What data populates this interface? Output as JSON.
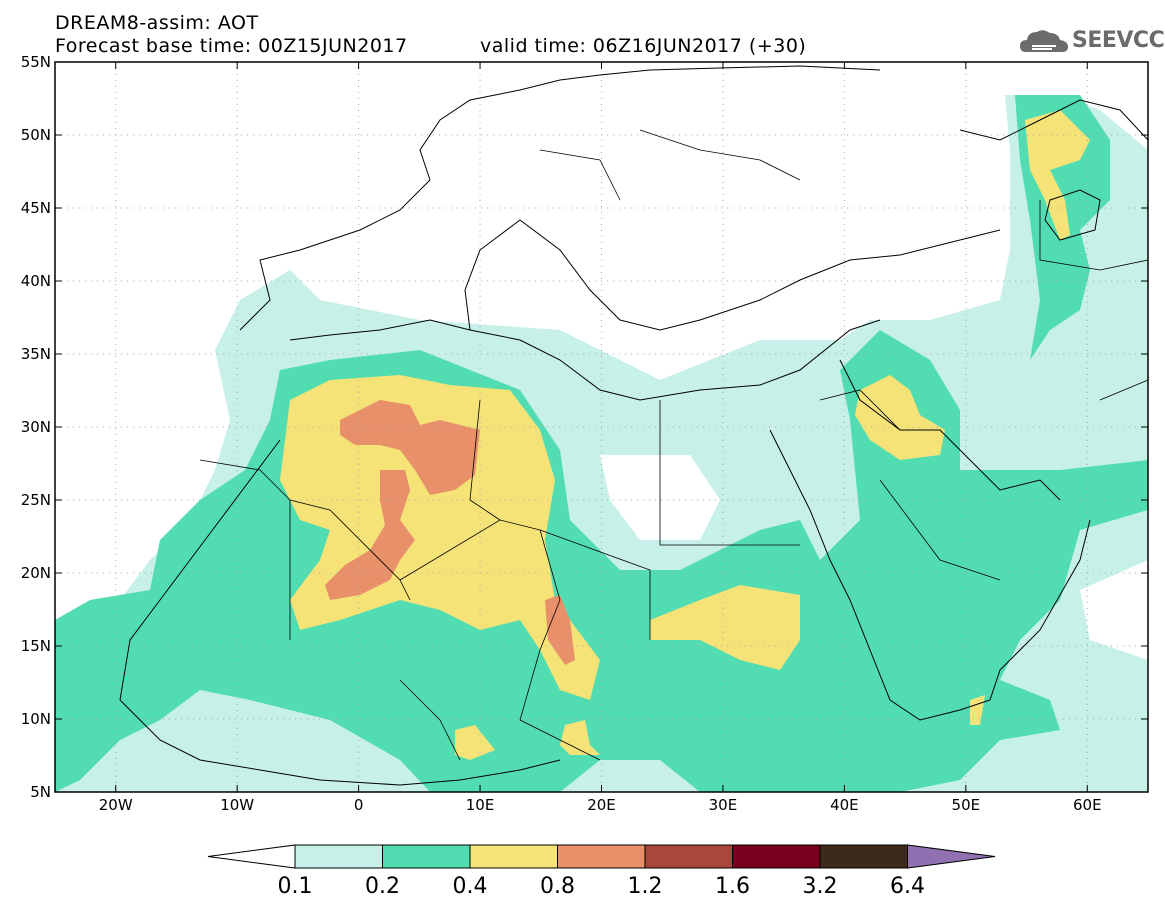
{
  "header": {
    "title": "DREAM8-assim: AOT",
    "base_time": "Forecast base time: 00Z15JUN2017",
    "valid_time": "valid time: 06Z16JUN2017 (+30)",
    "logo_text": "SEEVCCC"
  },
  "map": {
    "lon_range": [
      -25,
      65
    ],
    "lat_range": [
      5,
      55
    ],
    "lat_ticks": [
      {
        "value": 55,
        "label": "55N"
      },
      {
        "value": 50,
        "label": "50N"
      },
      {
        "value": 45,
        "label": "45N"
      },
      {
        "value": 40,
        "label": "40N"
      },
      {
        "value": 35,
        "label": "35N"
      },
      {
        "value": 30,
        "label": "30N"
      },
      {
        "value": 25,
        "label": "25N"
      },
      {
        "value": 20,
        "label": "20N"
      },
      {
        "value": 15,
        "label": "15N"
      },
      {
        "value": 10,
        "label": "10N"
      },
      {
        "value": 5,
        "label": "5N"
      }
    ],
    "lon_ticks": [
      {
        "value": -20,
        "label": "20W"
      },
      {
        "value": -10,
        "label": "10W"
      },
      {
        "value": 0,
        "label": "0"
      },
      {
        "value": 10,
        "label": "10E"
      },
      {
        "value": 20,
        "label": "20E"
      },
      {
        "value": 30,
        "label": "30E"
      },
      {
        "value": 40,
        "label": "40E"
      },
      {
        "value": 50,
        "label": "50E"
      },
      {
        "value": 60,
        "label": "60E"
      }
    ]
  },
  "colorbar": {
    "levels": [
      "0.1",
      "0.2",
      "0.4",
      "0.8",
      "1.2",
      "1.6",
      "3.2",
      "6.4"
    ],
    "colors": [
      "#ffffff",
      "#c6f0e8",
      "#52dcb2",
      "#f5e378",
      "#e8906a",
      "#a8483a",
      "#7a0020",
      "#3e2a1a",
      "#9070b0"
    ]
  }
}
